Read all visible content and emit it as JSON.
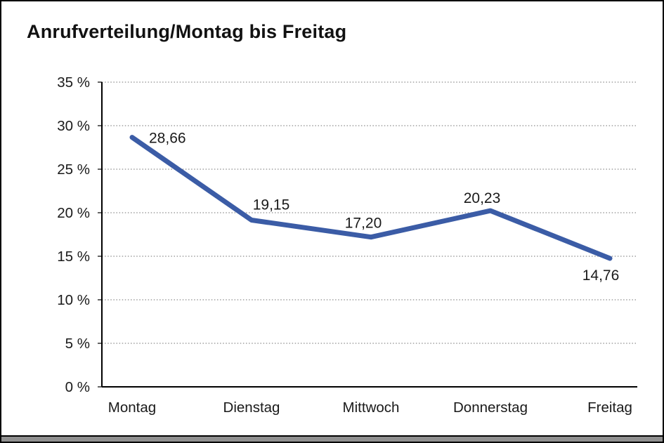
{
  "window": {
    "title": "Anrufverteilung/Montag bis Freitag"
  },
  "chart_data": {
    "type": "line",
    "title": "Anrufverteilung/Montag bis Freitag",
    "categories": [
      "Montag",
      "Dienstag",
      "Mittwoch",
      "Donnerstag",
      "Freitag"
    ],
    "values": [
      28.66,
      19.15,
      17.2,
      20.23,
      14.76
    ],
    "point_labels": [
      "28,66",
      "19,15",
      "17,20",
      "20,23",
      "14,76"
    ],
    "value_unit": "%",
    "yticks": [
      {
        "value": 35,
        "label": "35 %"
      },
      {
        "value": 30,
        "label": "30 %"
      },
      {
        "value": 25,
        "label": "25 %"
      },
      {
        "value": 20,
        "label": "20 %"
      },
      {
        "value": 15,
        "label": "15 %"
      },
      {
        "value": 10,
        "label": "10 %"
      },
      {
        "value": 5,
        "label": "5 %"
      },
      {
        "value": 0,
        "label": "0 %"
      }
    ],
    "ylim": [
      0,
      35
    ],
    "xlabel": "",
    "ylabel": "",
    "grid": "horizontal-dotted",
    "legend": "none",
    "colors": {
      "line": "#3B5CA6",
      "axis": "#000000",
      "gridline": "#8c8c8c",
      "text": "#1a1a1a"
    }
  }
}
